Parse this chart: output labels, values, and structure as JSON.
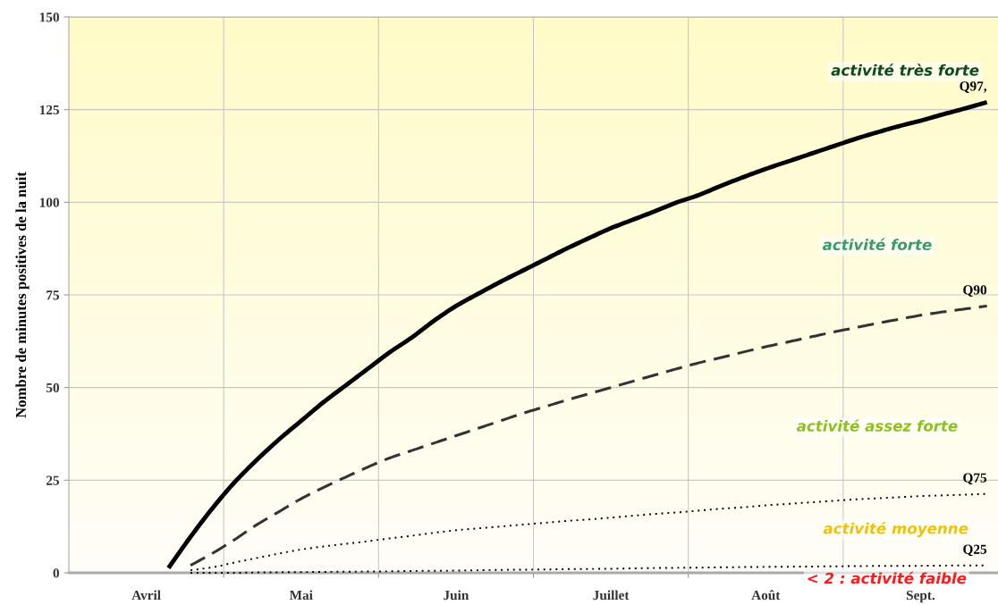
{
  "chart_data": {
    "type": "line",
    "ylabel": "Nombre de minutes positives de la nuit",
    "categories": [
      null,
      null,
      null,
      "Avril",
      null,
      null,
      null,
      null,
      null,
      null,
      "Mai",
      null,
      null,
      null,
      null,
      null,
      null,
      "Juin",
      null,
      null,
      null,
      null,
      null,
      null,
      "Juillet",
      null,
      null,
      null,
      null,
      null,
      null,
      "Août",
      null,
      null,
      null,
      null,
      null,
      null,
      "Sept.",
      null,
      null,
      null
    ],
    "ylim": [
      0,
      150
    ],
    "yticks": [
      0,
      25,
      50,
      75,
      100,
      125,
      150
    ],
    "grid": true,
    "series": [
      {
        "name": "Q97,",
        "color": "#000000",
        "line_style": "solid",
        "values": [
          null,
          null,
          null,
          null,
          1.3,
          9.7,
          17.5,
          24.5,
          30.5,
          36,
          41,
          46,
          50.5,
          55,
          59.5,
          63.5,
          68,
          72,
          75.3,
          78.5,
          81.5,
          84.5,
          87.5,
          90.3,
          93,
          95.3,
          97.6,
          100,
          102,
          104.5,
          106.8,
          109,
          111,
          113,
          115,
          117,
          118.8,
          120.5,
          122,
          123.7,
          125.3,
          127
        ]
      },
      {
        "name": "Q90",
        "color": "#333333",
        "line_style": "dashed",
        "values": [
          null,
          null,
          null,
          null,
          null,
          2,
          5.3,
          9,
          13,
          16.5,
          20,
          23,
          25.8,
          28.5,
          31,
          33,
          35,
          37,
          39,
          41,
          43,
          44.8,
          46.6,
          48.3,
          50,
          51.7,
          53.4,
          55.1,
          56.7,
          58.1,
          59.6,
          61,
          62.3,
          63.6,
          64.9,
          66.1,
          67.3,
          68.4,
          69.5,
          70.4,
          71.2,
          72
        ]
      },
      {
        "name": "Q75",
        "color": "#000000",
        "line_style": "dotted",
        "values": [
          null,
          null,
          null,
          null,
          null,
          0.7,
          1.5,
          2.8,
          4,
          5.2,
          6.3,
          7.1,
          7.8,
          8.5,
          9.3,
          10,
          10.8,
          11.5,
          12,
          12.5,
          13,
          13.5,
          14,
          14.4,
          14.9,
          15.4,
          15.9,
          16.3,
          16.8,
          17.3,
          17.7,
          18.2,
          18.6,
          19,
          19.4,
          19.8,
          20.1,
          20.4,
          20.7,
          20.9,
          21.1,
          21.3
        ]
      },
      {
        "name": "Q25",
        "color": "#000000",
        "line_style": "dotted",
        "values": [
          null,
          null,
          null,
          null,
          null,
          0,
          0,
          0,
          0.1,
          0.15,
          0.2,
          0.25,
          0.3,
          0.35,
          0.4,
          0.5,
          0.55,
          0.6,
          0.7,
          0.8,
          0.85,
          0.9,
          1,
          1.05,
          1.1,
          1.2,
          1.3,
          1.35,
          1.4,
          1.5,
          1.55,
          1.6,
          1.65,
          1.7,
          1.75,
          1.8,
          1.85,
          1.85,
          1.9,
          1.95,
          2,
          2
        ]
      }
    ],
    "annotations": [
      "activité très forte",
      "activité forte",
      "activité assez forte",
      "activité moyenne",
      "< 2 : activité faible"
    ]
  }
}
